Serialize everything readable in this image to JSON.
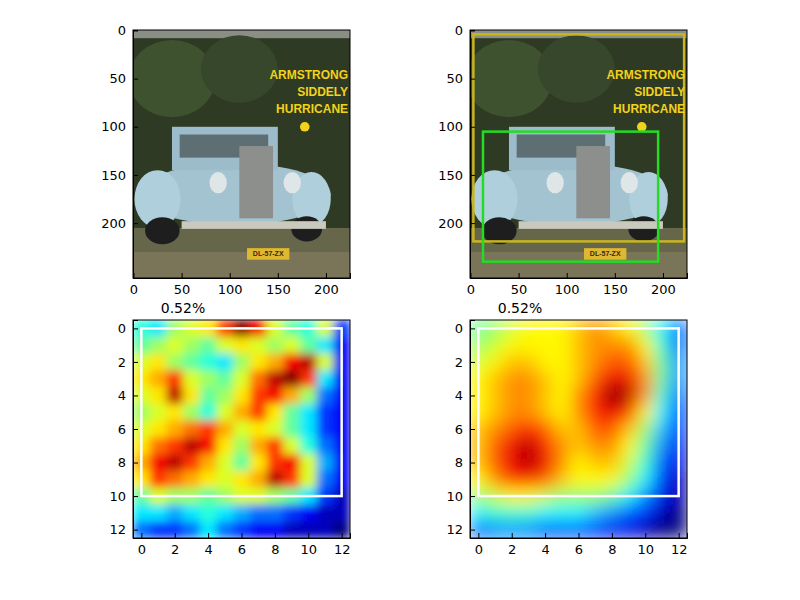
{
  "chart_data": [
    {
      "type": "image",
      "xlim": [
        -0.5,
        225
      ],
      "ylim": [
        257,
        -0.5
      ],
      "xticks": [
        0,
        50,
        100,
        150,
        200
      ],
      "yticks": [
        0,
        50,
        100,
        150,
        200
      ],
      "annotations": [
        "ARMSTRONG",
        "SIDDELY",
        "HURRICANE",
        "DL-57-ZX"
      ]
    },
    {
      "type": "image",
      "xlim": [
        -0.5,
        225
      ],
      "ylim": [
        257,
        -0.5
      ],
      "xticks": [
        0,
        50,
        100,
        150,
        200
      ],
      "yticks": [
        0,
        50,
        100,
        150,
        200
      ],
      "annotations": [
        "ARMSTRONG",
        "SIDDELY",
        "HURRICANE",
        "DL-57-ZX"
      ],
      "boxes": [
        {
          "x": [
            3,
            222
          ],
          "y": [
            4,
            219
          ],
          "color": "#c9b51e"
        },
        {
          "x": [
            13,
            195
          ],
          "y": [
            105,
            240
          ],
          "color": "#22dd22"
        }
      ]
    },
    {
      "type": "heatmap",
      "title": "0.52%",
      "xlim": [
        -0.5,
        12.5
      ],
      "ylim": [
        12.5,
        -0.5
      ],
      "xticks": [
        0,
        2,
        4,
        6,
        8,
        10,
        12
      ],
      "yticks": [
        0,
        2,
        4,
        6,
        8,
        10,
        12
      ],
      "cells": [
        [
          0.35,
          0.3,
          0.45,
          0.5,
          0.55,
          0.7,
          0.85,
          0.75,
          0.5,
          0.4,
          0.35,
          0.5,
          0.15
        ],
        [
          0.4,
          0.45,
          0.5,
          0.45,
          0.4,
          0.5,
          0.55,
          0.5,
          0.45,
          0.5,
          0.4,
          0.3,
          0.1
        ],
        [
          0.5,
          0.55,
          0.45,
          0.4,
          0.35,
          0.3,
          0.45,
          0.55,
          0.6,
          0.75,
          0.8,
          0.5,
          0.1
        ],
        [
          0.55,
          0.6,
          0.7,
          0.5,
          0.45,
          0.4,
          0.5,
          0.65,
          0.8,
          0.85,
          0.7,
          0.3,
          0.1
        ],
        [
          0.5,
          0.55,
          0.8,
          0.55,
          0.4,
          0.45,
          0.55,
          0.7,
          0.75,
          0.6,
          0.45,
          0.2,
          0.1
        ],
        [
          0.45,
          0.5,
          0.55,
          0.45,
          0.35,
          0.5,
          0.6,
          0.7,
          0.55,
          0.4,
          0.3,
          0.15,
          0.1
        ],
        [
          0.5,
          0.55,
          0.6,
          0.65,
          0.7,
          0.6,
          0.5,
          0.55,
          0.5,
          0.4,
          0.3,
          0.15,
          0.1
        ],
        [
          0.55,
          0.65,
          0.7,
          0.8,
          0.75,
          0.55,
          0.45,
          0.6,
          0.7,
          0.5,
          0.35,
          0.2,
          0.1
        ],
        [
          0.6,
          0.75,
          0.8,
          0.7,
          0.6,
          0.5,
          0.4,
          0.55,
          0.7,
          0.75,
          0.5,
          0.25,
          0.1
        ],
        [
          0.55,
          0.7,
          0.65,
          0.6,
          0.55,
          0.5,
          0.55,
          0.6,
          0.8,
          0.7,
          0.5,
          0.2,
          0.1
        ],
        [
          0.4,
          0.5,
          0.45,
          0.45,
          0.4,
          0.45,
          0.5,
          0.5,
          0.45,
          0.4,
          0.3,
          0.15,
          0.05
        ],
        [
          0.3,
          0.3,
          0.25,
          0.3,
          0.35,
          0.3,
          0.25,
          0.2,
          0.2,
          0.15,
          0.1,
          0.05,
          0.05
        ],
        [
          0.2,
          0.15,
          0.15,
          0.2,
          0.3,
          0.2,
          0.15,
          0.1,
          0.1,
          0.05,
          0.05,
          0.05,
          0.0
        ]
      ],
      "boxes": [
        {
          "x": [
            0,
            12
          ],
          "y": [
            0,
            10
          ],
          "color": "#ffffff"
        }
      ]
    },
    {
      "type": "heatmap",
      "title": "0.52%",
      "xlim": [
        -0.5,
        12.5
      ],
      "ylim": [
        12.5,
        -0.5
      ],
      "xticks": [
        0,
        2,
        4,
        6,
        8,
        10,
        12
      ],
      "yticks": [
        0,
        2,
        4,
        6,
        8,
        10,
        12
      ],
      "cells": [
        [
          0.45,
          0.5,
          0.55,
          0.6,
          0.6,
          0.6,
          0.65,
          0.7,
          0.65,
          0.6,
          0.5,
          0.35,
          0.2
        ],
        [
          0.5,
          0.55,
          0.6,
          0.6,
          0.6,
          0.6,
          0.65,
          0.7,
          0.7,
          0.7,
          0.6,
          0.4,
          0.2
        ],
        [
          0.55,
          0.6,
          0.65,
          0.65,
          0.6,
          0.6,
          0.65,
          0.7,
          0.75,
          0.75,
          0.65,
          0.45,
          0.25
        ],
        [
          0.6,
          0.65,
          0.7,
          0.7,
          0.65,
          0.6,
          0.65,
          0.75,
          0.85,
          0.85,
          0.7,
          0.45,
          0.25
        ],
        [
          0.6,
          0.65,
          0.7,
          0.7,
          0.65,
          0.6,
          0.7,
          0.8,
          0.95,
          0.9,
          0.7,
          0.4,
          0.2
        ],
        [
          0.6,
          0.65,
          0.7,
          0.7,
          0.65,
          0.6,
          0.7,
          0.8,
          0.85,
          0.8,
          0.6,
          0.35,
          0.15
        ],
        [
          0.65,
          0.7,
          0.75,
          0.8,
          0.75,
          0.65,
          0.65,
          0.75,
          0.75,
          0.65,
          0.5,
          0.3,
          0.15
        ],
        [
          0.65,
          0.75,
          0.85,
          0.9,
          0.8,
          0.7,
          0.65,
          0.7,
          0.7,
          0.6,
          0.45,
          0.25,
          0.1
        ],
        [
          0.65,
          0.75,
          0.85,
          0.9,
          0.85,
          0.7,
          0.6,
          0.65,
          0.65,
          0.55,
          0.4,
          0.2,
          0.1
        ],
        [
          0.6,
          0.7,
          0.8,
          0.8,
          0.75,
          0.65,
          0.6,
          0.6,
          0.6,
          0.5,
          0.35,
          0.15,
          0.05
        ],
        [
          0.5,
          0.55,
          0.6,
          0.6,
          0.55,
          0.5,
          0.5,
          0.5,
          0.45,
          0.35,
          0.25,
          0.1,
          0.05
        ],
        [
          0.35,
          0.4,
          0.4,
          0.4,
          0.35,
          0.35,
          0.35,
          0.3,
          0.25,
          0.2,
          0.15,
          0.05,
          0.0
        ],
        [
          0.2,
          0.25,
          0.25,
          0.25,
          0.2,
          0.2,
          0.2,
          0.15,
          0.1,
          0.1,
          0.05,
          0.0,
          0.0
        ]
      ],
      "boxes": [
        {
          "x": [
            0,
            12
          ],
          "y": [
            0,
            10
          ],
          "color": "#ffffff"
        }
      ]
    }
  ]
}
